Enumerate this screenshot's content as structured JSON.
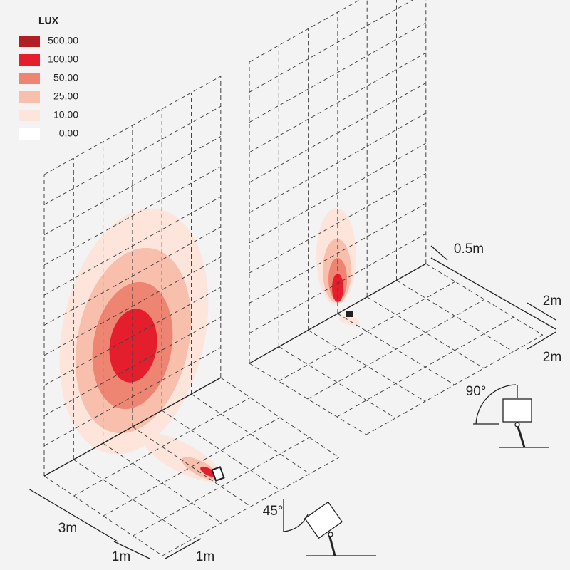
{
  "legend": {
    "title": "LUX",
    "items": [
      {
        "label": "500,00",
        "color": "#b11f24"
      },
      {
        "label": "100,00",
        "color": "#e41e2d"
      },
      {
        "label": "50,00",
        "color": "#ee8472"
      },
      {
        "label": "25,00",
        "color": "#f8bfad"
      },
      {
        "label": "10,00",
        "color": "#fde5dc"
      },
      {
        "label": "0,00",
        "color": "#ffffff"
      }
    ]
  },
  "dimensions": [
    "3m",
    "1m",
    "1m",
    "0.5m",
    "2m",
    "2m"
  ],
  "angles": [
    "45°",
    "90°"
  ]
}
